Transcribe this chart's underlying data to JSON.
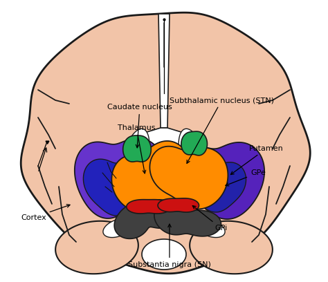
{
  "figsize": [
    4.74,
    4.08
  ],
  "dpi": 100,
  "brain_fill": "#F2C4A8",
  "brain_edge": "#1a1a1a",
  "white_matter": "#FFFFFF",
  "structures": {
    "putamen_L_outer_color": "#6633CC",
    "putamen_L_inner_color": "#2222BB",
    "putamen_R_outer_color": "#5522BB",
    "putamen_R_inner_color": "#2222AA",
    "caudate_L_color": "#22AA55",
    "caudate_R_color": "#22AA55",
    "thalamus_L_color": "#FF8C00",
    "thalamus_R_color": "#FF8C00",
    "GPi_L_color": "#CC1111",
    "GPi_R_color": "#CC1111",
    "SN_L_color": "#404040",
    "SN_R_color": "#404040"
  },
  "label_fontsize": 8,
  "cortex_label": "Cortex",
  "caudate_label": "Caudate nucleus",
  "thalamus_label": "Thalamus",
  "stn_label": "Subthalamic nucleus (STN)",
  "putamen_label": "Putamen",
  "gpe_label": "GPe",
  "gpi_label": "GPi",
  "sn_label": "Substantia nigra (SN)"
}
